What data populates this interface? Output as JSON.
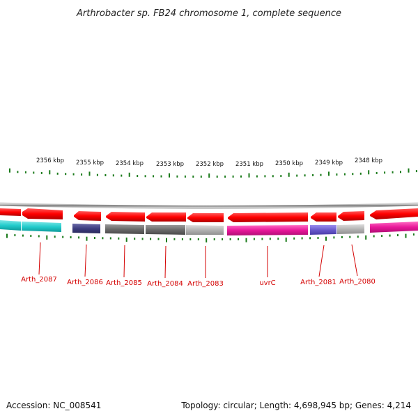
{
  "title": "Arthrobacter sp. FB24 chromosome 1, complete sequence",
  "footer": {
    "accession": "Accession: NC_008541",
    "summary": "Topology: circular; Length: 4,698,945 bp; Genes: 4,214"
  },
  "scale_labels": [
    "2356 kbp",
    "2355 kbp",
    "2354 kbp",
    "2353 kbp",
    "2352 kbp",
    "2351 kbp",
    "2350 kbp",
    "2349 kbp",
    "2348 kbp"
  ],
  "gene_labels": [
    "Arth_2087",
    "Arth_2086",
    "Arth_2085",
    "Arth_2084",
    "Arth_2083",
    "uvrC",
    "Arth_2081",
    "Arth_2080"
  ],
  "colors": {
    "strand_arrow": "#ff0000",
    "backbone": "#888888",
    "tick": "#1a7a1a",
    "label": "#d40000",
    "cyan": "#22cccc",
    "navy": "#3d3d80",
    "dark_gray": "#6b6b6b",
    "light_gray": "#b4b4b4",
    "magenta": "#e8189a",
    "violet": "#6a5acd"
  }
}
